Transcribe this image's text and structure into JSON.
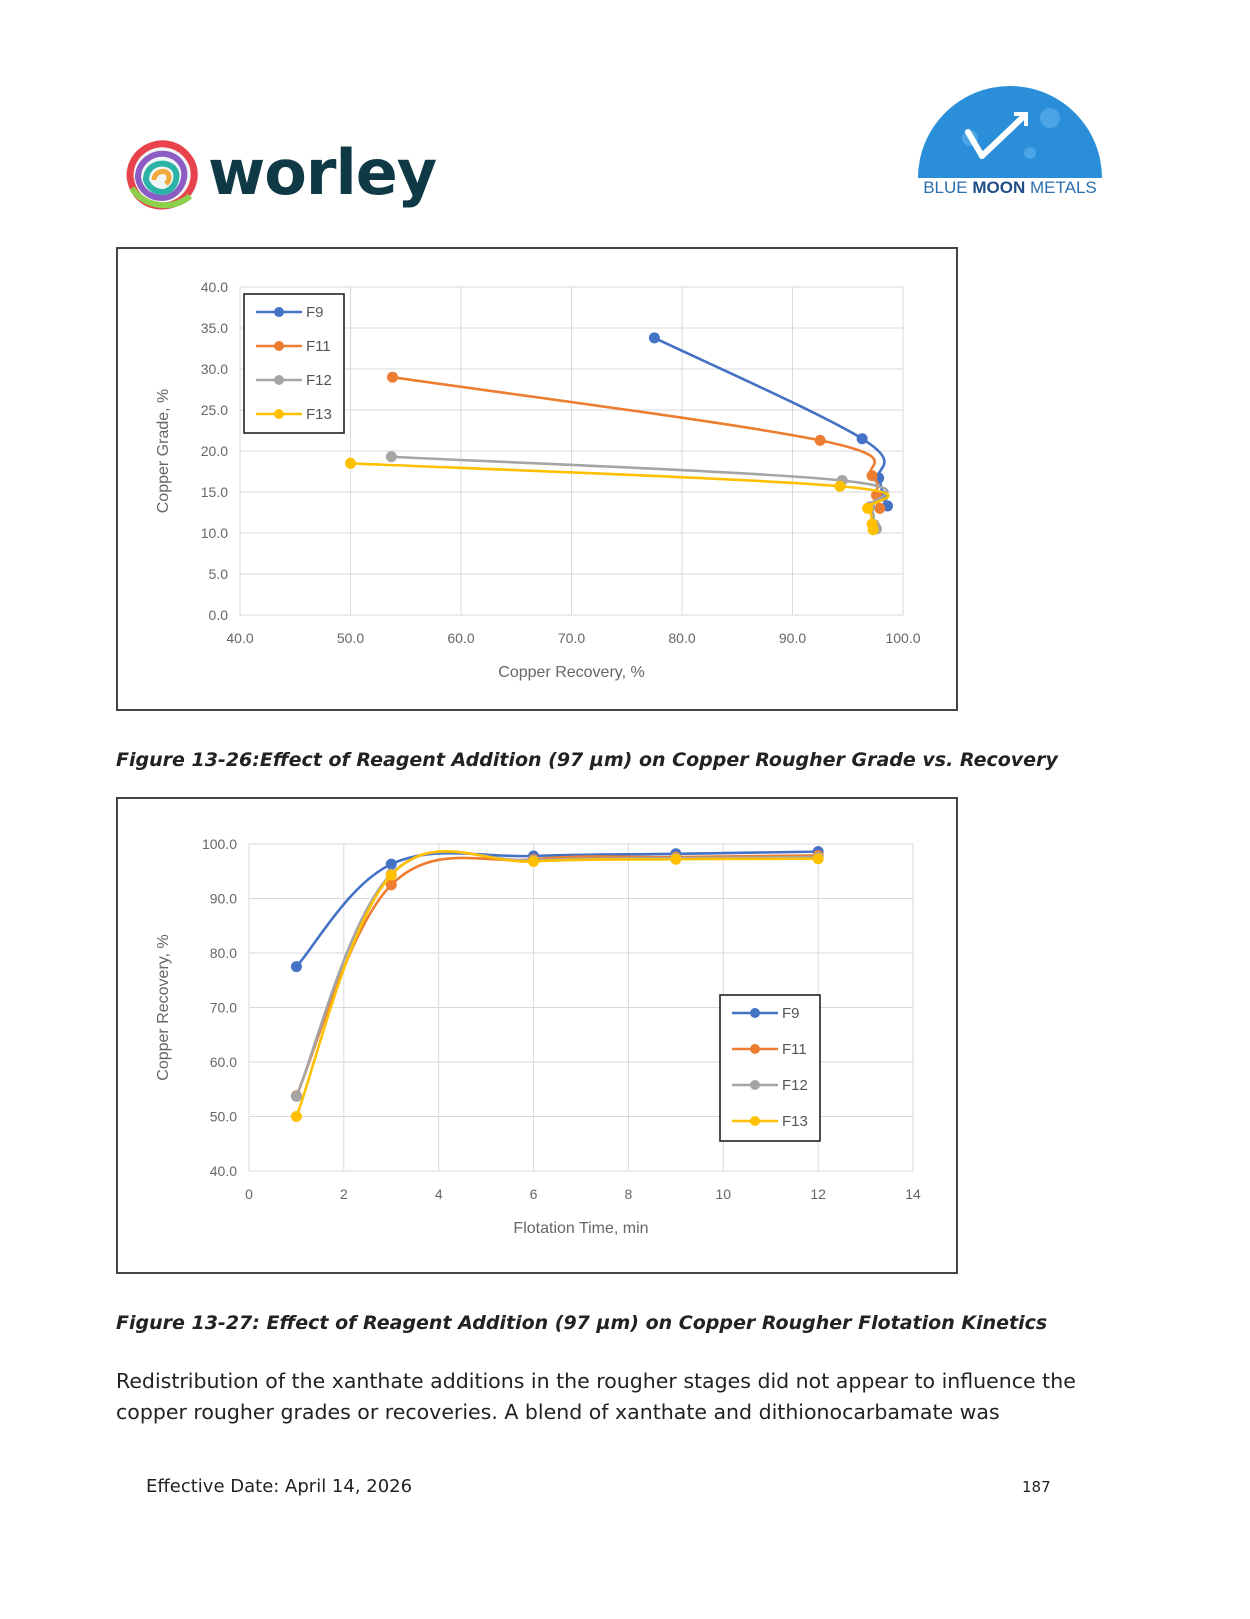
{
  "header": {
    "left_logo_text": "worley",
    "right_logo_text_part1": "BLUE",
    "right_logo_text_part2": "MOON",
    "right_logo_text_part3": "METALS"
  },
  "colors": {
    "F9": "#4472c4",
    "F11": "#ed7d31",
    "F12": "#a5a5a5",
    "F13": "#ffc000"
  },
  "figures": [
    {
      "caption": "Figure 13-26:Effect of Reagent Addition (97 µm) on Copper Rougher Grade vs. Recovery"
    },
    {
      "caption": "Figure 13-27: Effect of Reagent Addition (97 µm) on Copper Rougher Flotation Kinetics"
    }
  ],
  "chart_data": [
    {
      "type": "scatter",
      "xlabel": "Copper Recovery, %",
      "ylabel": "Copper Grade, %",
      "xlim": [
        40,
        100
      ],
      "ylim": [
        0,
        40
      ],
      "xticks": [
        "40.0",
        "50.0",
        "60.0",
        "70.0",
        "80.0",
        "90.0",
        "100.0"
      ],
      "yticks": [
        "0.0",
        "5.0",
        "10.0",
        "15.0",
        "20.0",
        "25.0",
        "30.0",
        "35.0",
        "40.0"
      ],
      "grid": true,
      "legend_position": "top-left",
      "series": [
        {
          "name": "F9",
          "x": [
            77.5,
            96.3,
            97.8,
            98.2,
            98.6
          ],
          "y": [
            33.8,
            21.5,
            16.7,
            14.5,
            13.3
          ]
        },
        {
          "name": "F11",
          "x": [
            53.8,
            92.5,
            97.2,
            97.6,
            97.9
          ],
          "y": [
            29.0,
            21.3,
            17.0,
            14.6,
            13.0
          ]
        },
        {
          "name": "F12",
          "x": [
            53.7,
            94.5,
            97.0,
            97.4,
            97.6
          ],
          "y": [
            19.3,
            16.4,
            13.2,
            11.0,
            10.5
          ]
        },
        {
          "name": "F13",
          "x": [
            50.0,
            94.3,
            96.8,
            97.2,
            97.3
          ],
          "y": [
            18.5,
            15.7,
            13.0,
            11.1,
            10.4
          ]
        }
      ]
    },
    {
      "type": "line",
      "xlabel": "Flotation Time,  min",
      "ylabel": "Copper Recovery, %",
      "xlim": [
        0,
        14
      ],
      "ylim": [
        40,
        100
      ],
      "xticks": [
        "0",
        "2",
        "4",
        "6",
        "8",
        "10",
        "12",
        "14"
      ],
      "yticks": [
        "40.0",
        "50.0",
        "60.0",
        "70.0",
        "80.0",
        "90.0",
        "100.0"
      ],
      "grid": true,
      "legend_position": "right",
      "series": [
        {
          "name": "F9",
          "x": [
            1,
            3,
            6,
            9,
            12
          ],
          "y": [
            77.5,
            96.3,
            97.8,
            98.2,
            98.6
          ]
        },
        {
          "name": "F11",
          "x": [
            1,
            3,
            6,
            9,
            12
          ],
          "y": [
            53.8,
            92.5,
            97.2,
            97.6,
            97.9
          ]
        },
        {
          "name": "F12",
          "x": [
            1,
            3,
            6,
            9,
            12
          ],
          "y": [
            53.7,
            94.5,
            97.0,
            97.4,
            97.6
          ]
        },
        {
          "name": "F13",
          "x": [
            1,
            3,
            6,
            9,
            12
          ],
          "y": [
            50.0,
            94.3,
            96.8,
            97.2,
            97.3
          ]
        }
      ]
    }
  ],
  "body": {
    "paragraph": "Redistribution of the xanthate additions in the rougher stages did not appear to influence the copper rougher grades or recoveries. A blend of xanthate and dithionocarbamate was"
  },
  "footer": {
    "effective_date": "Effective Date: April 14, 2026",
    "page_number": "187"
  }
}
